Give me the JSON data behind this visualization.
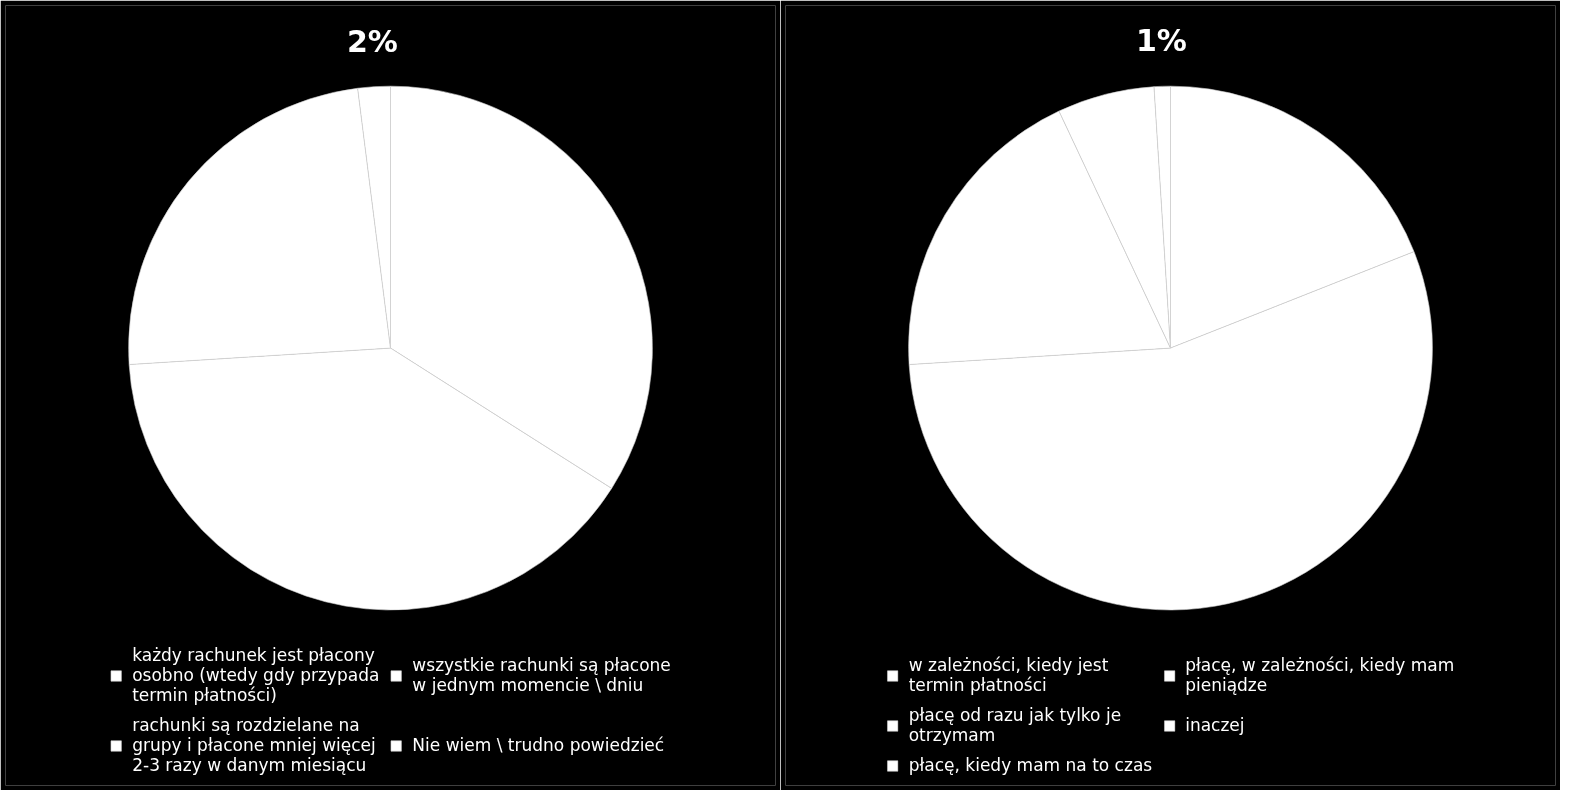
{
  "chart_data": [
    {
      "type": "pie",
      "categories": [
        "każdy rachunek jest płacony osobno (wtedy gdy przypada termin płatności)",
        "rachunki są rozdzielane na grupy i płacone mniej więcej 2-3 razy w danym miesiącu",
        "wszystkie rachunki są płacone w jednym momencie \\ dniu",
        "Nie wiem \\ trudno powiedzieć"
      ],
      "values": [
        34,
        40,
        24,
        2
      ],
      "colors": [
        "#ffffff",
        "#ffffff",
        "#ffffff",
        "#ffffff"
      ],
      "value_labels": [
        null,
        null,
        null,
        "2%"
      ],
      "legend": "bottom"
    },
    {
      "type": "pie",
      "categories": [
        "w zależności, kiedy jest termin płatności",
        "płacę od razu jak tylko je otrzymam",
        "płacę, kiedy mam na to czas",
        "płacę, w zależności, kiedy mam pieniądze",
        "inaczej"
      ],
      "values": [
        19,
        55,
        19,
        6,
        1
      ],
      "colors": [
        "#ffffff",
        "#ffffff",
        "#ffffff",
        "#ffffff",
        "#ffffff"
      ],
      "value_labels": [
        null,
        null,
        null,
        null,
        "1%"
      ],
      "legend": "bottom"
    }
  ]
}
